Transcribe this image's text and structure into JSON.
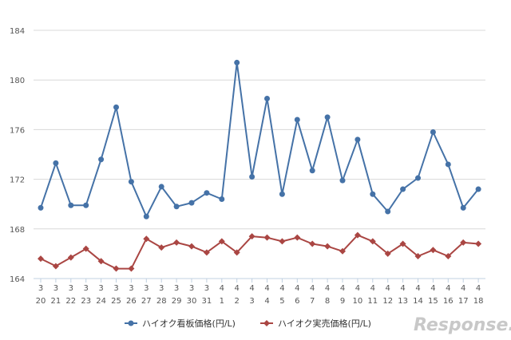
{
  "chart_data": {
    "type": "line",
    "title": "",
    "xlabel": "",
    "ylabel": "",
    "ylim": [
      164,
      184
    ],
    "yticks": [
      164,
      168,
      172,
      176,
      180,
      184
    ],
    "grid": true,
    "legend_position": "bottom",
    "months": [
      "3",
      "3",
      "3",
      "3",
      "3",
      "3",
      "3",
      "3",
      "3",
      "3",
      "3",
      "3",
      "4",
      "4",
      "4",
      "4",
      "4",
      "4",
      "4",
      "4",
      "4",
      "4",
      "4",
      "4",
      "4",
      "4",
      "4",
      "4",
      "4",
      "4"
    ],
    "days": [
      "20",
      "21",
      "22",
      "23",
      "24",
      "25",
      "26",
      "27",
      "28",
      "29",
      "30",
      "31",
      "1",
      "2",
      "3",
      "4",
      "5",
      "6",
      "7",
      "8",
      "9",
      "10",
      "11",
      "12",
      "13",
      "14",
      "15",
      "16",
      "17",
      "18"
    ],
    "series": [
      {
        "name": "ハイオク看板価格(円/L)",
        "color": "#4572a7",
        "marker": "circle",
        "values": [
          169.7,
          173.3,
          169.9,
          169.9,
          173.6,
          177.8,
          171.8,
          169.0,
          171.4,
          169.8,
          170.1,
          170.9,
          170.4,
          181.4,
          172.2,
          178.5,
          170.8,
          176.8,
          172.7,
          177.0,
          171.9,
          175.2,
          170.8,
          169.4,
          171.2,
          172.1,
          175.8,
          173.2,
          169.7,
          171.2
        ]
      },
      {
        "name": "ハイオク実売価格(円/L)",
        "color": "#aa4643",
        "marker": "diamond",
        "values": [
          165.6,
          165.0,
          165.7,
          166.4,
          165.4,
          164.8,
          164.8,
          167.2,
          166.5,
          166.9,
          166.6,
          166.1,
          167.0,
          166.1,
          167.4,
          167.3,
          167.0,
          167.3,
          166.8,
          166.6,
          166.2,
          167.5,
          167.0,
          166.0,
          166.8,
          165.8,
          166.3,
          165.8,
          166.9,
          166.8
        ]
      }
    ]
  },
  "watermark": "Response."
}
